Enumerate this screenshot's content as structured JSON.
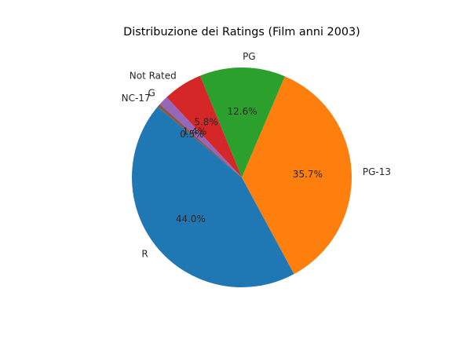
{
  "chart_data": {
    "type": "pie",
    "title": "Distribuzione dei Ratings (Film anni 2003)",
    "slices": [
      {
        "label": "R",
        "value": 44.0,
        "pct_label": "44.0%",
        "color": "#1f77b4"
      },
      {
        "label": "PG-13",
        "value": 35.7,
        "pct_label": "35.7%",
        "color": "#ff7f0e"
      },
      {
        "label": "PG",
        "value": 12.6,
        "pct_label": "12.6%",
        "color": "#2ca02c"
      },
      {
        "label": "Not Rated",
        "value": 5.8,
        "pct_label": "5.8%",
        "color": "#d62728"
      },
      {
        "label": "G",
        "value": 1.4,
        "pct_label": "1.4%",
        "color": "#9467bd"
      },
      {
        "label": "NC-17",
        "value": 0.5,
        "pct_label": "0.5%",
        "color": "#8c564b"
      }
    ],
    "start_angle_deg": 140,
    "direction": "counterclockwise"
  }
}
